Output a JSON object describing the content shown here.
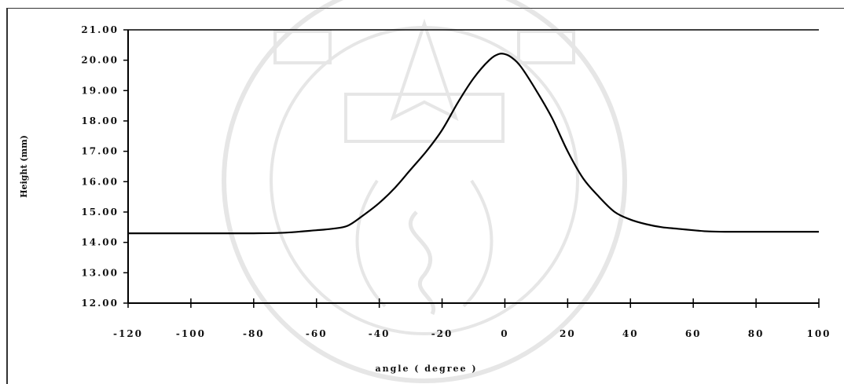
{
  "chart_data": {
    "type": "line",
    "title": "",
    "xlabel": "angle ( degree )",
    "ylabel": "Height (mm)",
    "xlim": [
      -120,
      100
    ],
    "ylim": [
      12.0,
      21.0
    ],
    "x_ticks": [
      -120,
      -100,
      -80,
      -60,
      -40,
      -20,
      0,
      20,
      40,
      60,
      80,
      100
    ],
    "x_tick_labels": [
      "-120",
      "-100",
      "-80",
      "-60",
      "-40",
      "-20",
      "0",
      "20",
      "40",
      "60",
      "80",
      "100"
    ],
    "y_ticks": [
      12,
      13,
      14,
      15,
      16,
      17,
      18,
      19,
      20,
      21
    ],
    "y_tick_labels": [
      "12.00",
      "13.00",
      "14.00",
      "15.00",
      "16.00",
      "17.00",
      "18.00",
      "19.00",
      "20.00",
      "21.00"
    ],
    "grid": false,
    "legend": "none",
    "line_color": "#000000",
    "series": [
      {
        "x": [
          -120,
          -100,
          -80,
          -70,
          -60,
          -55,
          -50,
          -45,
          -40,
          -35,
          -30,
          -25,
          -20,
          -15,
          -10,
          -5,
          -2,
          0,
          2,
          5,
          10,
          15,
          20,
          25,
          30,
          35,
          40,
          45,
          50,
          55,
          60,
          65,
          70,
          80,
          100
        ],
        "values": [
          14.3,
          14.3,
          14.3,
          14.32,
          14.4,
          14.45,
          14.55,
          14.9,
          15.3,
          15.8,
          16.4,
          17.0,
          17.7,
          18.6,
          19.4,
          20.0,
          20.2,
          20.2,
          20.1,
          19.8,
          19.0,
          18.1,
          17.0,
          16.1,
          15.5,
          15.0,
          14.75,
          14.6,
          14.5,
          14.45,
          14.4,
          14.36,
          14.35,
          14.35,
          14.35
        ]
      }
    ]
  }
}
